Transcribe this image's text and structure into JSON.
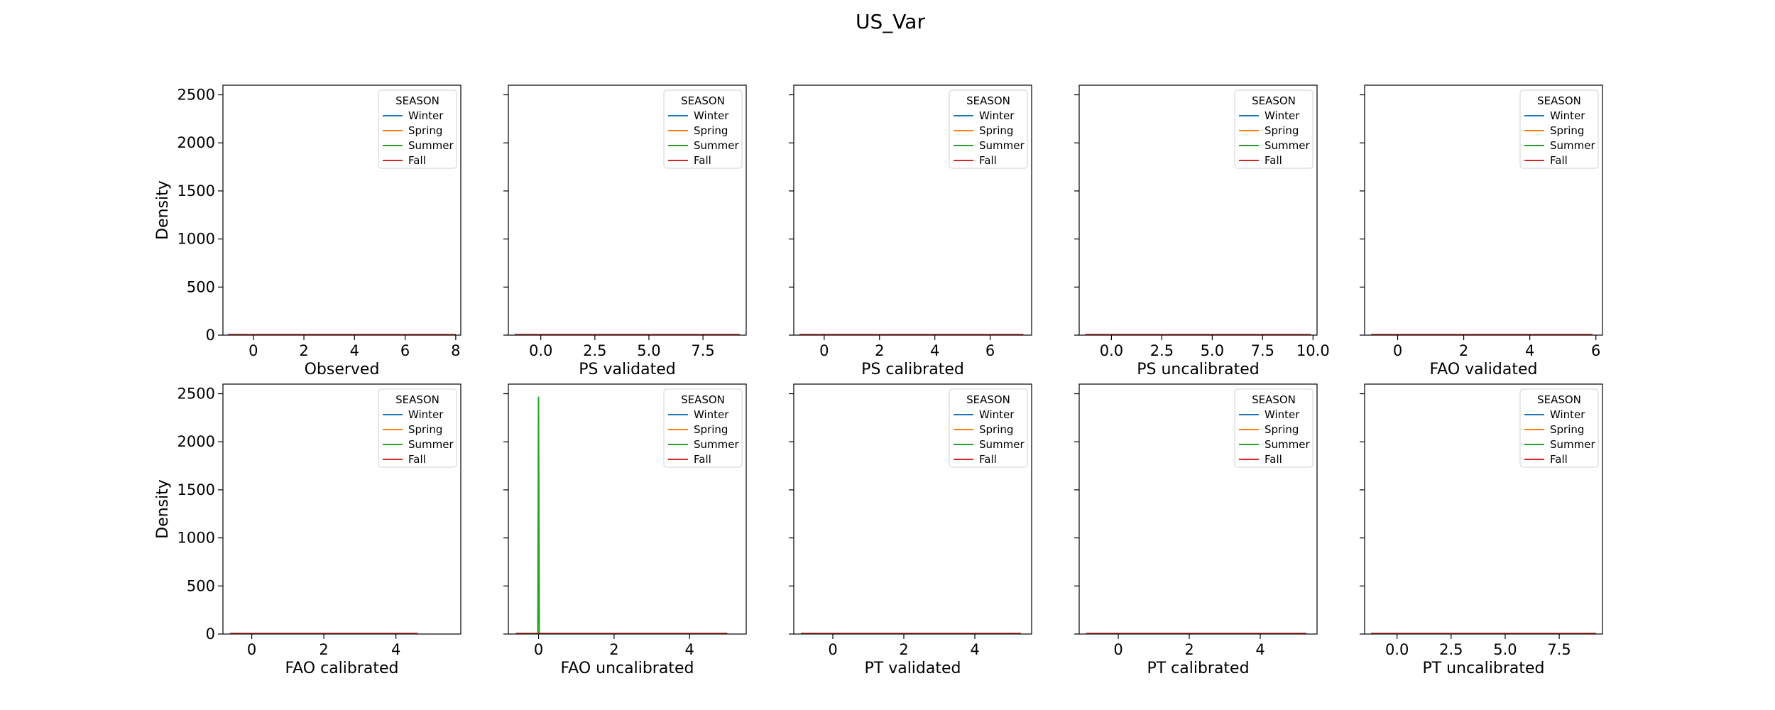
{
  "figure": {
    "title": "US_Var"
  },
  "legend": {
    "title": "SEASON",
    "entries": [
      {
        "name": "Winter",
        "color": "#1f77b4"
      },
      {
        "name": "Spring",
        "color": "#ff7f0e"
      },
      {
        "name": "Summer",
        "color": "#2ca02c"
      },
      {
        "name": "Fall",
        "color": "#d62728"
      }
    ]
  },
  "chart_data": [
    {
      "type": "line",
      "xlabel": "Observed",
      "ylabel": "Density",
      "xlim": [
        -1.2,
        8.2
      ],
      "ylim": [
        0,
        2600
      ],
      "xticks": [
        0,
        2,
        4,
        6,
        8
      ],
      "xtick_labels": [
        "0",
        "2",
        "4",
        "6",
        "8"
      ],
      "yticks": [
        0,
        500,
        1000,
        1500,
        2000,
        2500
      ],
      "ytick_labels": [
        "0",
        "500",
        "1000",
        "1500",
        "2000",
        "2500"
      ],
      "series": [
        {
          "name": "Winter",
          "x": [
            -1.0,
            0.5,
            1.5,
            2.0,
            8.0
          ],
          "y": [
            0,
            2,
            3,
            2,
            0
          ]
        },
        {
          "name": "Spring",
          "x": [
            -1.0,
            3.0,
            7.5,
            8.0
          ],
          "y": [
            0,
            0,
            2,
            0
          ]
        },
        {
          "name": "Summer",
          "x": [
            -1.0,
            0,
            8.0
          ],
          "y": [
            0,
            1,
            0
          ]
        },
        {
          "name": "Fall",
          "x": [
            -1.0,
            1.0,
            8.0
          ],
          "y": [
            0,
            1,
            0
          ]
        }
      ]
    },
    {
      "type": "line",
      "xlabel": "PS validated",
      "ylabel": "",
      "xlim": [
        -1.5,
        9.5
      ],
      "ylim": [
        0,
        2600
      ],
      "xticks": [
        0,
        2.5,
        5,
        7.5
      ],
      "xtick_labels": [
        "0.0",
        "2.5",
        "5.0",
        "7.5"
      ],
      "yticks": [
        0,
        500,
        1000,
        1500,
        2000,
        2500
      ],
      "ytick_labels": [],
      "series": [
        {
          "name": "Winter",
          "x": [
            -1.2,
            0.5,
            2.0,
            9.2
          ],
          "y": [
            0,
            2,
            2,
            0
          ]
        },
        {
          "name": "Spring",
          "x": [
            -1.2,
            4.0,
            8.5,
            9.2
          ],
          "y": [
            0,
            0,
            2,
            0
          ]
        },
        {
          "name": "Summer",
          "x": [
            -1.2,
            0,
            9.2
          ],
          "y": [
            0,
            1,
            0
          ]
        },
        {
          "name": "Fall",
          "x": [
            -1.2,
            1.0,
            9.2
          ],
          "y": [
            0,
            1,
            0
          ]
        }
      ]
    },
    {
      "type": "line",
      "xlabel": "PS calibrated",
      "ylabel": "",
      "xlim": [
        -1.1,
        7.5
      ],
      "ylim": [
        0,
        2600
      ],
      "xticks": [
        0,
        2,
        4,
        6
      ],
      "xtick_labels": [
        "0",
        "2",
        "4",
        "6"
      ],
      "yticks": [
        0,
        500,
        1000,
        1500,
        2000,
        2500
      ],
      "ytick_labels": [],
      "series": [
        {
          "name": "Winter",
          "x": [
            -0.9,
            0.5,
            2.0,
            7.2
          ],
          "y": [
            0,
            2,
            2,
            0
          ]
        },
        {
          "name": "Spring",
          "x": [
            -0.9,
            3.0,
            6.5,
            7.2
          ],
          "y": [
            0,
            0,
            2,
            0
          ]
        },
        {
          "name": "Summer",
          "x": [
            -0.9,
            0,
            7.2
          ],
          "y": [
            0,
            1,
            0
          ]
        },
        {
          "name": "Fall",
          "x": [
            -0.9,
            1.0,
            7.2
          ],
          "y": [
            0,
            1,
            0
          ]
        }
      ]
    },
    {
      "type": "line",
      "xlabel": "PS uncalibrated",
      "ylabel": "",
      "xlim": [
        -1.6,
        10.2
      ],
      "ylim": [
        0,
        2600
      ],
      "xticks": [
        0,
        2.5,
        5,
        7.5,
        10
      ],
      "xtick_labels": [
        "0.0",
        "2.5",
        "5.0",
        "7.5",
        "10.0"
      ],
      "yticks": [
        0,
        500,
        1000,
        1500,
        2000,
        2500
      ],
      "ytick_labels": [],
      "series": [
        {
          "name": "Winter",
          "x": [
            -1.3,
            0.5,
            2.0,
            9.9
          ],
          "y": [
            0,
            2,
            2,
            0
          ]
        },
        {
          "name": "Spring",
          "x": [
            -1.3,
            4.0,
            9.0,
            9.9
          ],
          "y": [
            0,
            0,
            2,
            0
          ]
        },
        {
          "name": "Summer",
          "x": [
            -1.3,
            0,
            9.9
          ],
          "y": [
            0,
            1,
            0
          ]
        },
        {
          "name": "Fall",
          "x": [
            -1.3,
            1.0,
            9.9
          ],
          "y": [
            0,
            1,
            0
          ]
        }
      ]
    },
    {
      "type": "line",
      "xlabel": "FAO validated",
      "ylabel": "",
      "xlim": [
        -1.0,
        6.2
      ],
      "ylim": [
        0,
        2600
      ],
      "xticks": [
        0,
        2,
        4,
        6
      ],
      "xtick_labels": [
        "0",
        "2",
        "4",
        "6"
      ],
      "yticks": [
        0,
        500,
        1000,
        1500,
        2000,
        2500
      ],
      "ytick_labels": [],
      "series": [
        {
          "name": "Winter",
          "x": [
            -0.8,
            0.5,
            2.0,
            5.9
          ],
          "y": [
            0,
            2,
            2,
            0
          ]
        },
        {
          "name": "Spring",
          "x": [
            -0.8,
            3.0,
            5.5,
            5.9
          ],
          "y": [
            0,
            0,
            2,
            0
          ]
        },
        {
          "name": "Summer",
          "x": [
            -0.8,
            0,
            5.9
          ],
          "y": [
            0,
            1,
            0
          ]
        },
        {
          "name": "Fall",
          "x": [
            -0.8,
            1.0,
            5.9
          ],
          "y": [
            0,
            1,
            0
          ]
        }
      ]
    },
    {
      "type": "line",
      "xlabel": "FAO calibrated",
      "ylabel": "Density",
      "xlim": [
        -0.8,
        5.8
      ],
      "ylim": [
        0,
        2600
      ],
      "xticks": [
        0,
        2,
        4
      ],
      "xtick_labels": [
        "0",
        "2",
        "4"
      ],
      "yticks": [
        0,
        500,
        1000,
        1500,
        2000,
        2500
      ],
      "ytick_labels": [
        "0",
        "500",
        "1000",
        "1500",
        "2000",
        "2500"
      ],
      "series": [
        {
          "name": "Winter",
          "x": [
            -0.6,
            0.5,
            2.0,
            4.6
          ],
          "y": [
            0,
            2,
            2,
            0
          ]
        },
        {
          "name": "Spring",
          "x": [
            -0.6,
            3.0,
            4.3,
            4.6
          ],
          "y": [
            0,
            0,
            2,
            0
          ]
        },
        {
          "name": "Summer",
          "x": [
            -0.6,
            0,
            4.6
          ],
          "y": [
            0,
            1,
            0
          ]
        },
        {
          "name": "Fall",
          "x": [
            -0.6,
            1.0,
            4.6
          ],
          "y": [
            0,
            1,
            0
          ]
        }
      ]
    },
    {
      "type": "line",
      "xlabel": "FAO uncalibrated",
      "ylabel": "",
      "xlim": [
        -0.8,
        5.5
      ],
      "ylim": [
        0,
        2600
      ],
      "xticks": [
        0,
        2,
        4
      ],
      "xtick_labels": [
        "0",
        "2",
        "4"
      ],
      "yticks": [
        0,
        500,
        1000,
        1500,
        2000,
        2500
      ],
      "ytick_labels": [],
      "series": [
        {
          "name": "Winter",
          "x": [
            -0.6,
            0.5,
            2.0,
            5.0
          ],
          "y": [
            0,
            2,
            2,
            0
          ]
        },
        {
          "name": "Spring",
          "x": [
            -0.6,
            3.0,
            4.6,
            5.0
          ],
          "y": [
            0,
            0,
            2,
            0
          ]
        },
        {
          "name": "Summer",
          "x": [
            -0.6,
            -0.02,
            0,
            0.02,
            5.0
          ],
          "y": [
            0,
            0,
            2470,
            0,
            0
          ]
        },
        {
          "name": "Fall",
          "x": [
            -0.6,
            1.0,
            5.0
          ],
          "y": [
            0,
            1,
            0
          ]
        }
      ]
    },
    {
      "type": "line",
      "xlabel": "PT validated",
      "ylabel": "",
      "xlim": [
        -1.1,
        5.6
      ],
      "ylim": [
        0,
        2600
      ],
      "xticks": [
        0,
        2,
        4
      ],
      "xtick_labels": [
        "0",
        "2",
        "4"
      ],
      "yticks": [
        0,
        500,
        1000,
        1500,
        2000,
        2500
      ],
      "ytick_labels": [],
      "series": [
        {
          "name": "Winter",
          "x": [
            -0.9,
            0.5,
            2.0,
            5.3
          ],
          "y": [
            0,
            2,
            2,
            0
          ]
        },
        {
          "name": "Spring",
          "x": [
            -0.9,
            3.0,
            4.8,
            5.3
          ],
          "y": [
            0,
            0,
            2,
            0
          ]
        },
        {
          "name": "Summer",
          "x": [
            -0.9,
            0,
            5.3
          ],
          "y": [
            0,
            1,
            0
          ]
        },
        {
          "name": "Fall",
          "x": [
            -0.9,
            1.0,
            5.3
          ],
          "y": [
            0,
            1,
            0
          ]
        }
      ]
    },
    {
      "type": "line",
      "xlabel": "PT calibrated",
      "ylabel": "",
      "xlim": [
        -1.1,
        5.6
      ],
      "ylim": [
        0,
        2600
      ],
      "xticks": [
        0,
        2,
        4
      ],
      "xtick_labels": [
        "0",
        "2",
        "4"
      ],
      "yticks": [
        0,
        500,
        1000,
        1500,
        2000,
        2500
      ],
      "ytick_labels": [],
      "series": [
        {
          "name": "Winter",
          "x": [
            -0.9,
            0.5,
            2.0,
            5.3
          ],
          "y": [
            0,
            2,
            2,
            0
          ]
        },
        {
          "name": "Spring",
          "x": [
            -0.9,
            3.0,
            4.8,
            5.3
          ],
          "y": [
            0,
            0,
            2,
            0
          ]
        },
        {
          "name": "Summer",
          "x": [
            -0.9,
            0,
            5.3
          ],
          "y": [
            0,
            1,
            0
          ]
        },
        {
          "name": "Fall",
          "x": [
            -0.9,
            1.0,
            5.3
          ],
          "y": [
            0,
            1,
            0
          ]
        }
      ]
    },
    {
      "type": "line",
      "xlabel": "PT uncalibrated",
      "ylabel": "",
      "xlim": [
        -1.5,
        9.5
      ],
      "ylim": [
        0,
        2600
      ],
      "xticks": [
        0,
        2.5,
        5,
        7.5
      ],
      "xtick_labels": [
        "0.0",
        "2.5",
        "5.0",
        "7.5"
      ],
      "yticks": [
        0,
        500,
        1000,
        1500,
        2000,
        2500
      ],
      "ytick_labels": [],
      "series": [
        {
          "name": "Winter",
          "x": [
            -1.2,
            0.5,
            2.0,
            9.2
          ],
          "y": [
            0,
            2,
            2,
            0
          ]
        },
        {
          "name": "Spring",
          "x": [
            -1.2,
            4.0,
            8.5,
            9.2
          ],
          "y": [
            0,
            0,
            2,
            0
          ]
        },
        {
          "name": "Summer",
          "x": [
            -1.2,
            0,
            9.2
          ],
          "y": [
            0,
            1,
            0
          ]
        },
        {
          "name": "Fall",
          "x": [
            -1.2,
            1.0,
            9.2
          ],
          "y": [
            0,
            1,
            0
          ]
        }
      ]
    }
  ]
}
